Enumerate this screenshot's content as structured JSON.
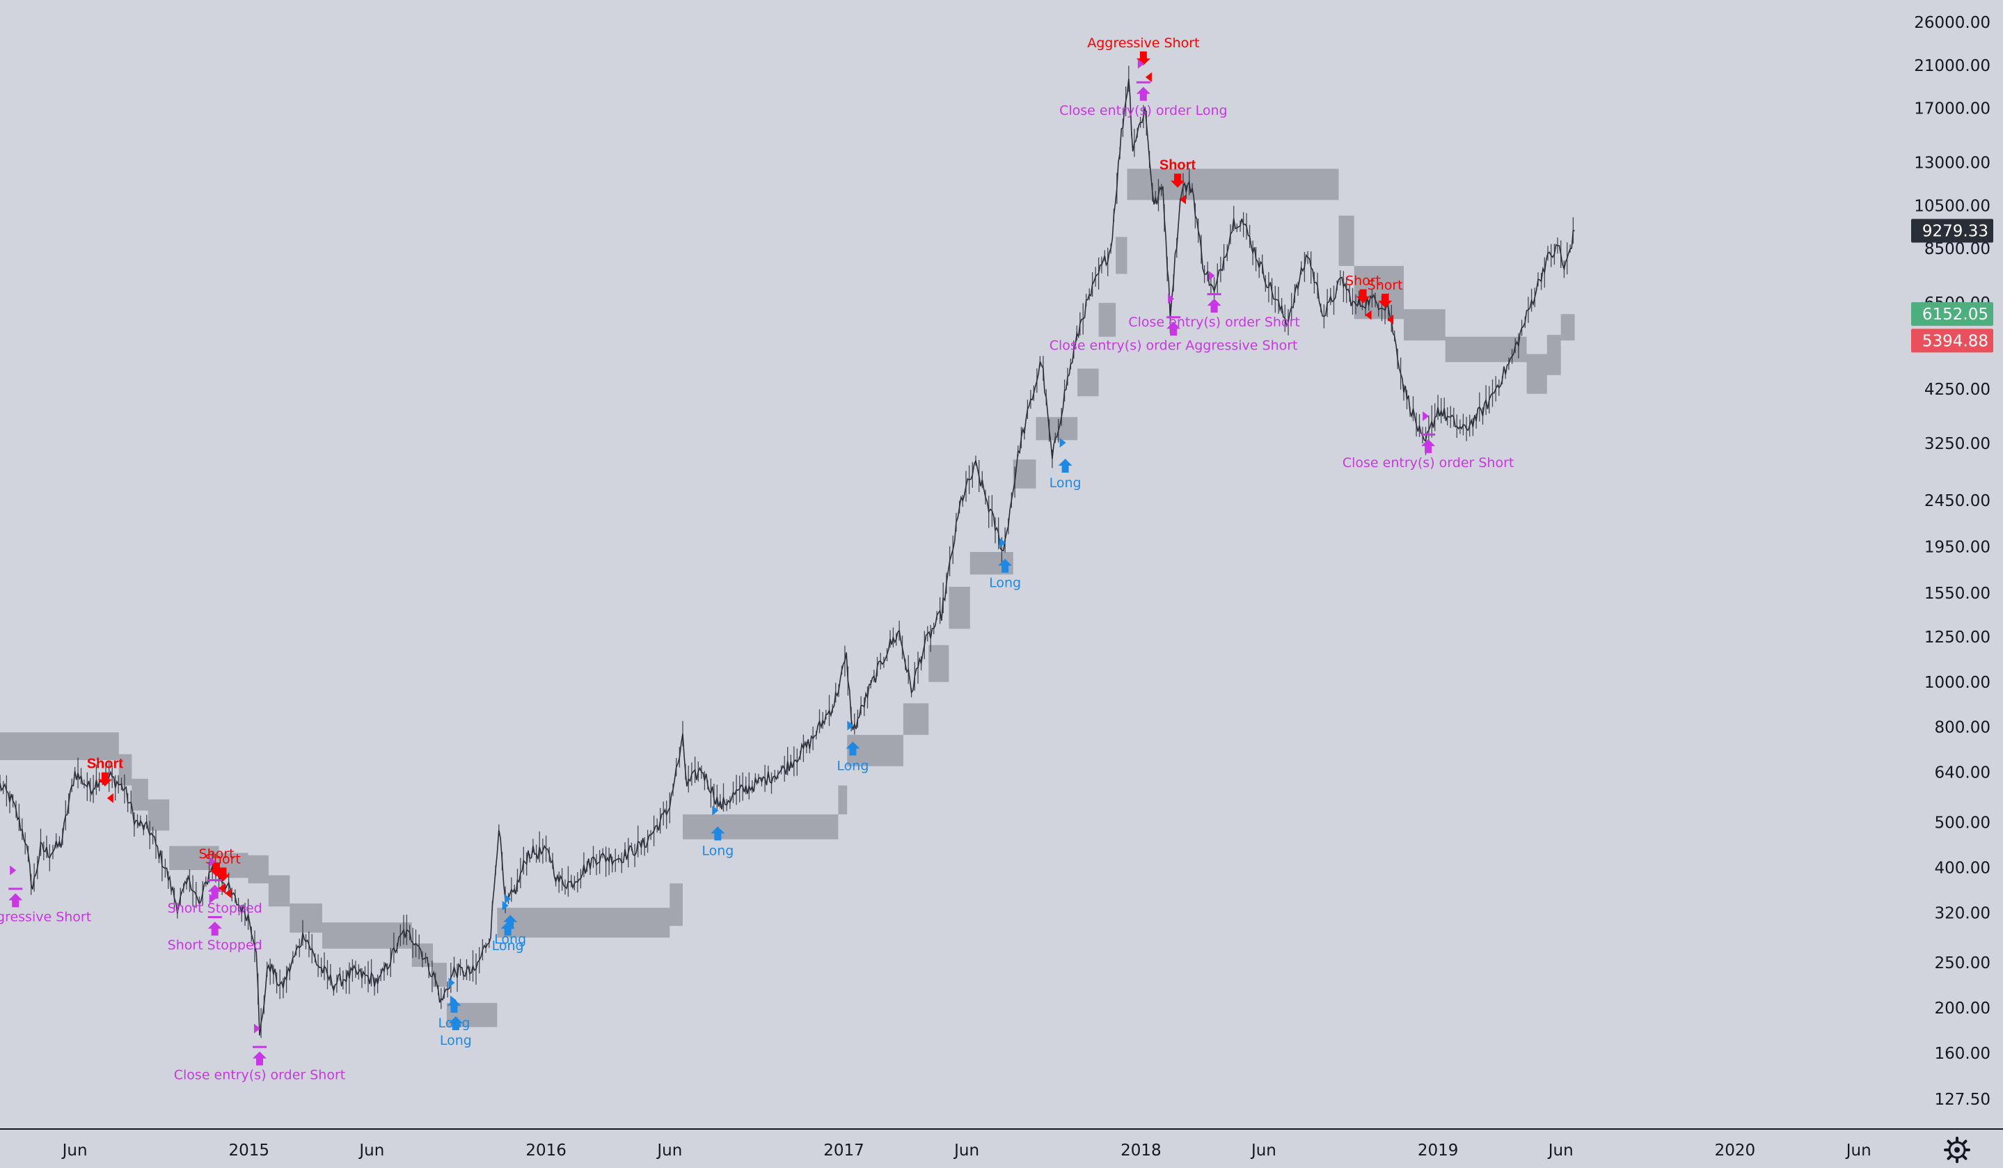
{
  "colors": {
    "background": "#d1d4dc",
    "candles": "#2a2e39",
    "band": "#a3a6ae",
    "short": "#ff0000",
    "long": "#1e88e5",
    "close": "#c936e6",
    "axis_text": "#131722",
    "last_price_bg": "#2a2e39",
    "upper_badge_bg": "#4caf7d",
    "lower_badge_bg": "#e9505b",
    "badge_text": "#ffffff"
  },
  "chart_data": {
    "type": "line",
    "scale": "log",
    "ylim": [
      110,
      29000
    ],
    "xlim": [
      "2014-03-01",
      "2020-08-01"
    ],
    "y_ticks": [
      "26000.00",
      "21000.00",
      "17000.00",
      "13000.00",
      "10500.00",
      "8500.00",
      "6500.00",
      "4250.00",
      "3250.00",
      "2450.00",
      "1950.00",
      "1550.00",
      "1250.00",
      "1000.00",
      "800.00",
      "640.00",
      "500.00",
      "400.00",
      "320.00",
      "250.00",
      "200.00",
      "160.00",
      "127.50"
    ],
    "x_ticks": [
      {
        "label": "Jun",
        "date": "2014-06-01"
      },
      {
        "label": "2015",
        "date": "2015-01-01"
      },
      {
        "label": "Jun",
        "date": "2015-06-01"
      },
      {
        "label": "2016",
        "date": "2016-01-01"
      },
      {
        "label": "Jun",
        "date": "2016-06-01"
      },
      {
        "label": "2017",
        "date": "2017-01-01"
      },
      {
        "label": "Jun",
        "date": "2017-06-01"
      },
      {
        "label": "2018",
        "date": "2018-01-01"
      },
      {
        "label": "Jun",
        "date": "2018-06-01"
      },
      {
        "label": "2019",
        "date": "2019-01-01"
      },
      {
        "label": "Jun",
        "date": "2019-06-01"
      },
      {
        "label": "2020",
        "date": "2020-01-01"
      },
      {
        "label": "Jun",
        "date": "2020-06-01"
      }
    ],
    "price_labels": {
      "last": "9279.33",
      "upper": "6152.05",
      "lower": "5394.88"
    },
    "price_series": {
      "name": "",
      "points": [
        [
          "2014-03-01",
          600
        ],
        [
          "2014-03-15",
          560
        ],
        [
          "2014-04-01",
          460
        ],
        [
          "2014-04-10",
          360
        ],
        [
          "2014-04-20",
          440
        ],
        [
          "2014-05-01",
          430
        ],
        [
          "2014-05-15",
          450
        ],
        [
          "2014-06-01",
          640
        ],
        [
          "2014-06-20",
          590
        ],
        [
          "2014-07-01",
          620
        ],
        [
          "2014-07-15",
          625
        ],
        [
          "2014-08-01",
          590
        ],
        [
          "2014-08-15",
          500
        ],
        [
          "2014-09-01",
          480
        ],
        [
          "2014-09-20",
          400
        ],
        [
          "2014-10-05",
          330
        ],
        [
          "2014-10-20",
          380
        ],
        [
          "2014-11-01",
          330
        ],
        [
          "2014-11-15",
          400
        ],
        [
          "2014-12-01",
          375
        ],
        [
          "2014-12-15",
          340
        ],
        [
          "2014-12-31",
          315
        ],
        [
          "2015-01-10",
          270
        ],
        [
          "2015-01-14",
          172
        ],
        [
          "2015-01-25",
          250
        ],
        [
          "2015-02-10",
          220
        ],
        [
          "2015-03-10",
          290
        ],
        [
          "2015-03-25",
          250
        ],
        [
          "2015-04-15",
          225
        ],
        [
          "2015-05-10",
          238
        ],
        [
          "2015-06-10",
          228
        ],
        [
          "2015-07-10",
          290
        ],
        [
          "2015-07-25",
          280
        ],
        [
          "2015-08-18",
          230
        ],
        [
          "2015-08-25",
          205
        ],
        [
          "2015-09-10",
          240
        ],
        [
          "2015-10-05",
          238
        ],
        [
          "2015-10-25",
          290
        ],
        [
          "2015-11-04",
          495
        ],
        [
          "2015-11-12",
          330
        ],
        [
          "2015-11-25",
          360
        ],
        [
          "2015-12-10",
          430
        ],
        [
          "2016-01-05",
          430
        ],
        [
          "2016-01-15",
          375
        ],
        [
          "2016-02-01",
          370
        ],
        [
          "2016-03-01",
          420
        ],
        [
          "2016-04-01",
          420
        ],
        [
          "2016-05-01",
          450
        ],
        [
          "2016-05-30",
          530
        ],
        [
          "2016-06-17",
          750
        ],
        [
          "2016-06-22",
          600
        ],
        [
          "2016-07-10",
          650
        ],
        [
          "2016-08-02",
          540
        ],
        [
          "2016-08-20",
          575
        ],
        [
          "2016-09-20",
          610
        ],
        [
          "2016-10-20",
          650
        ],
        [
          "2016-11-20",
          740
        ],
        [
          "2016-12-20",
          900
        ],
        [
          "2017-01-04",
          1130
        ],
        [
          "2017-01-12",
          780
        ],
        [
          "2017-02-01",
          960
        ],
        [
          "2017-02-25",
          1190
        ],
        [
          "2017-03-10",
          1280
        ],
        [
          "2017-03-25",
          960
        ],
        [
          "2017-04-10",
          1200
        ],
        [
          "2017-05-01",
          1400
        ],
        [
          "2017-05-25",
          2450
        ],
        [
          "2017-06-12",
          2900
        ],
        [
          "2017-07-16",
          1900
        ],
        [
          "2017-08-05",
          3200
        ],
        [
          "2017-09-01",
          4900
        ],
        [
          "2017-09-14",
          3000
        ],
        [
          "2017-10-01",
          4300
        ],
        [
          "2017-10-20",
          6000
        ],
        [
          "2017-11-10",
          7500
        ],
        [
          "2017-11-25",
          8500
        ],
        [
          "2017-12-08",
          15000
        ],
        [
          "2017-12-17",
          19800
        ],
        [
          "2017-12-22",
          14000
        ],
        [
          "2018-01-06",
          17000
        ],
        [
          "2018-01-17",
          10500
        ],
        [
          "2018-01-28",
          11500
        ],
        [
          "2018-02-06",
          6200
        ],
        [
          "2018-02-20",
          11500
        ],
        [
          "2018-03-05",
          11500
        ],
        [
          "2018-03-18",
          7900
        ],
        [
          "2018-04-01",
          6800
        ],
        [
          "2018-04-25",
          9700
        ],
        [
          "2018-05-05",
          9800
        ],
        [
          "2018-06-01",
          7500
        ],
        [
          "2018-06-29",
          5900
        ],
        [
          "2018-07-25",
          8300
        ],
        [
          "2018-08-14",
          6100
        ],
        [
          "2018-09-05",
          7300
        ],
        [
          "2018-09-20",
          6400
        ],
        [
          "2018-10-10",
          6600
        ],
        [
          "2018-11-01",
          6400
        ],
        [
          "2018-11-20",
          4300
        ],
        [
          "2018-12-15",
          3200
        ],
        [
          "2019-01-01",
          3850
        ],
        [
          "2019-02-01",
          3450
        ],
        [
          "2019-03-01",
          3900
        ],
        [
          "2019-04-02",
          4950
        ],
        [
          "2019-05-14",
          8000
        ],
        [
          "2019-05-30",
          8600
        ],
        [
          "2019-06-05",
          7600
        ],
        [
          "2019-06-18",
          9279
        ]
      ]
    },
    "band_series": {
      "name": "",
      "points": [
        [
          "2014-03-01",
          680,
          780
        ],
        [
          "2014-07-25",
          680,
          780
        ],
        [
          "2014-07-25",
          600,
          700
        ],
        [
          "2014-08-10",
          600,
          700
        ],
        [
          "2014-08-10",
          530,
          620
        ],
        [
          "2014-08-30",
          530,
          620
        ],
        [
          "2014-08-30",
          480,
          560
        ],
        [
          "2014-09-25",
          480,
          560
        ],
        [
          "2014-09-25",
          395,
          445
        ],
        [
          "2014-11-25",
          395,
          445
        ],
        [
          "2014-11-25",
          380,
          430
        ],
        [
          "2014-12-31",
          380,
          430
        ],
        [
          "2014-12-31",
          370,
          425
        ],
        [
          "2015-01-25",
          370,
          425
        ],
        [
          "2015-01-25",
          330,
          385
        ],
        [
          "2015-02-20",
          330,
          385
        ],
        [
          "2015-02-20",
          290,
          335
        ],
        [
          "2015-04-01",
          290,
          335
        ],
        [
          "2015-04-01",
          268,
          305
        ],
        [
          "2015-07-20",
          268,
          305
        ],
        [
          "2015-07-20",
          245,
          275
        ],
        [
          "2015-08-15",
          245,
          275
        ],
        [
          "2015-08-15",
          222,
          250
        ],
        [
          "2015-09-01",
          222,
          250
        ],
        [
          "2015-09-01",
          182,
          205
        ],
        [
          "2015-11-02",
          182,
          205
        ],
        [
          "2015-11-02",
          283,
          328
        ],
        [
          "2016-06-01",
          283,
          328
        ],
        [
          "2016-06-01",
          300,
          370
        ],
        [
          "2016-06-17",
          300,
          370
        ],
        [
          "2016-06-17",
          460,
          520
        ],
        [
          "2016-12-25",
          460,
          520
        ],
        [
          "2016-12-25",
          520,
          600
        ],
        [
          "2017-01-05",
          520,
          600
        ],
        [
          "2017-01-05",
          660,
          770
        ],
        [
          "2017-03-15",
          660,
          770
        ],
        [
          "2017-03-15",
          770,
          900
        ],
        [
          "2017-04-15",
          770,
          900
        ],
        [
          "2017-04-15",
          1000,
          1200
        ],
        [
          "2017-05-10",
          1000,
          1200
        ],
        [
          "2017-05-10",
          1300,
          1600
        ],
        [
          "2017-06-05",
          1300,
          1600
        ],
        [
          "2017-06-05",
          1700,
          1900
        ],
        [
          "2017-07-28",
          1700,
          1900
        ],
        [
          "2017-07-28",
          2600,
          3000
        ],
        [
          "2017-08-25",
          2600,
          3000
        ],
        [
          "2017-08-25",
          3300,
          3700
        ],
        [
          "2017-10-15",
          3300,
          3700
        ],
        [
          "2017-10-15",
          4100,
          4700
        ],
        [
          "2017-11-10",
          4100,
          4700
        ],
        [
          "2017-11-10",
          5500,
          6500
        ],
        [
          "2017-12-01",
          5500,
          6500
        ],
        [
          "2017-12-01",
          7500,
          9000
        ],
        [
          "2017-12-15",
          7500,
          9000
        ],
        [
          "2017-12-15",
          10800,
          12600
        ],
        [
          "2018-09-01",
          10800,
          12600
        ],
        [
          "2018-09-01",
          7800,
          10000
        ],
        [
          "2018-09-20",
          7800,
          10000
        ],
        [
          "2018-09-20",
          6000,
          7800
        ],
        [
          "2018-11-20",
          6000,
          7800
        ],
        [
          "2018-11-20",
          5400,
          6300
        ],
        [
          "2019-01-10",
          5400,
          6300
        ],
        [
          "2019-01-10",
          4850,
          5500
        ],
        [
          "2019-04-20",
          4850,
          5500
        ],
        [
          "2019-04-20",
          4150,
          5050
        ],
        [
          "2019-05-15",
          4150,
          5050
        ],
        [
          "2019-05-15",
          4550,
          5550
        ],
        [
          "2019-06-01",
          4550,
          5550
        ],
        [
          "2019-06-01",
          5400,
          6150
        ],
        [
          "2019-06-18",
          5400,
          6150
        ]
      ]
    },
    "signals": [
      {
        "type": "short",
        "label": "Short",
        "bold": true,
        "date": "2014-07-08",
        "y": 640
      },
      {
        "type": "close",
        "label": "order Aggressive Short",
        "date": "2014-03-20",
        "y": 345
      },
      {
        "type": "short",
        "label": "Short",
        "bold": false,
        "date": "2014-11-22",
        "y": 410
      },
      {
        "type": "short",
        "label": "Short",
        "bold": false,
        "date": "2014-11-30",
        "y": 400
      },
      {
        "type": "close",
        "label": "Short Stopped",
        "date": "2014-11-20",
        "y": 360
      },
      {
        "type": "close",
        "label": "Short Stopped",
        "date": "2014-11-20",
        "y": 300
      },
      {
        "type": "close",
        "label": "Close entry(s) order Short",
        "date": "2015-01-14",
        "y": 158
      },
      {
        "type": "long",
        "label": "Long",
        "date": "2015-09-10",
        "y": 205
      },
      {
        "type": "long",
        "label": "Long",
        "date": "2015-09-12",
        "y": 188
      },
      {
        "type": "long",
        "label": "Long",
        "date": "2015-11-15",
        "y": 300
      },
      {
        "type": "long",
        "label": "Long",
        "date": "2015-11-18",
        "y": 310
      },
      {
        "type": "long",
        "label": "Long",
        "date": "2016-07-30",
        "y": 480
      },
      {
        "type": "long",
        "label": "Long",
        "date": "2017-01-12",
        "y": 730
      },
      {
        "type": "long",
        "label": "Long",
        "date": "2017-07-18",
        "y": 1800
      },
      {
        "type": "long",
        "label": "Long",
        "date": "2017-09-30",
        "y": 2950
      },
      {
        "type": "short",
        "label": "Aggressive Short",
        "bold": false,
        "date": "2018-01-04",
        "y": 22500
      },
      {
        "type": "close",
        "label": "Close entry(s) order Long",
        "date": "2018-01-04",
        "y": 18500
      },
      {
        "type": "short",
        "label": "Short",
        "bold": true,
        "date": "2018-02-15",
        "y": 12300
      },
      {
        "type": "close",
        "label": "Close entry(s) order Aggressive Short",
        "date": "2018-02-10",
        "y": 5800
      },
      {
        "type": "close",
        "label": "Close entry(s) order Short",
        "date": "2018-04-01",
        "y": 6500
      },
      {
        "type": "short",
        "label": "Short",
        "bold": false,
        "date": "2018-10-01",
        "y": 6950
      },
      {
        "type": "short",
        "label": "Short",
        "bold": false,
        "date": "2018-10-28",
        "y": 6800
      },
      {
        "type": "close",
        "label": "Close entry(s) order Short",
        "date": "2018-12-20",
        "y": 3250
      }
    ]
  }
}
